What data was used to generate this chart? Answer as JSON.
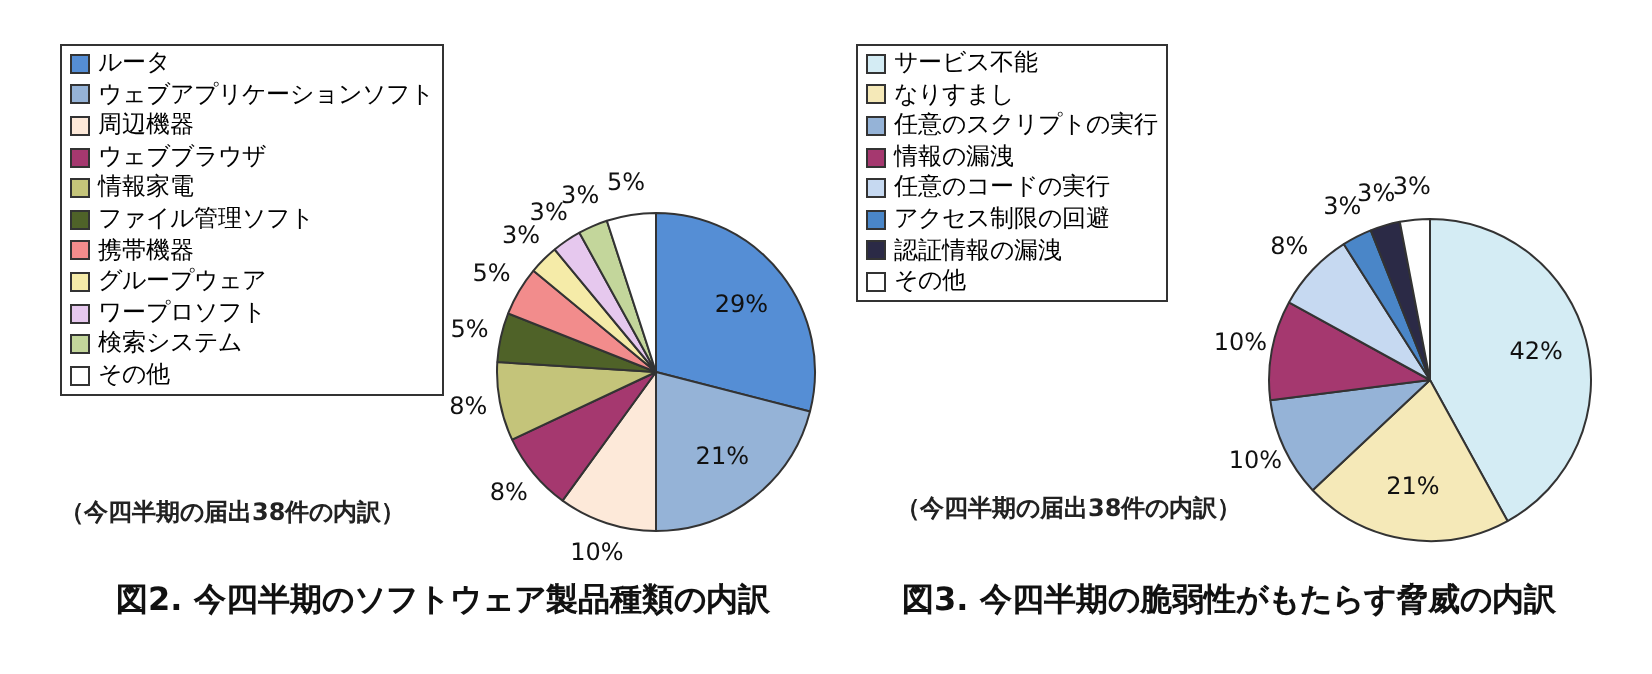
{
  "chart_data": [
    {
      "type": "pie",
      "title": "図2. 今四半期のソフトウェア製品種類の内訳",
      "annotations": [
        "（今四半期の届出38件の内訳）"
      ],
      "categories": [
        "ルータ",
        "ウェブアプリケーションソフト",
        "周辺機器",
        "ウェブブラウザ",
        "情報家電",
        "ファイル管理ソフト",
        "携帯機器",
        "グループウェア",
        "ワープロソフト",
        "検索システム",
        "その他"
      ],
      "values": [
        29,
        21,
        10,
        8,
        8,
        5,
        5,
        3,
        3,
        3,
        5
      ],
      "colors": [
        "#558ed5",
        "#95b3d7",
        "#fde9d9",
        "#a5386f",
        "#c4c47a",
        "#4f6228",
        "#f28c8c",
        "#f5eba8",
        "#e6c8ee",
        "#c3d69b",
        "#ffffff"
      ],
      "value_labels": [
        "29%",
        "21%",
        "10%",
        "8%",
        "8%",
        "5%",
        "5%",
        "3%",
        "3%",
        "3%",
        "5%"
      ],
      "legend": "top left"
    },
    {
      "type": "pie",
      "title": "図3. 今四半期の脆弱性がもたらす脅威の内訳",
      "annotations": [
        "（今四半期の届出38件の内訳）"
      ],
      "categories": [
        "サービス不能",
        "なりすまし",
        "任意のスクリプトの実行",
        "情報の漏洩",
        "任意のコードの実行",
        "アクセス制限の回避",
        "認証情報の漏洩",
        "その他"
      ],
      "values": [
        42,
        21,
        10,
        10,
        8,
        3,
        3,
        3
      ],
      "colors": [
        "#d4ecf4",
        "#f5e9b8",
        "#95b3d7",
        "#a5386f",
        "#c6d9f1",
        "#4a86c8",
        "#2b2a46",
        "#ffffff"
      ],
      "value_labels": [
        "42%",
        "21%",
        "10%",
        "10%",
        "8%",
        "3%",
        "3%",
        "3%"
      ],
      "legend": "top left"
    }
  ]
}
